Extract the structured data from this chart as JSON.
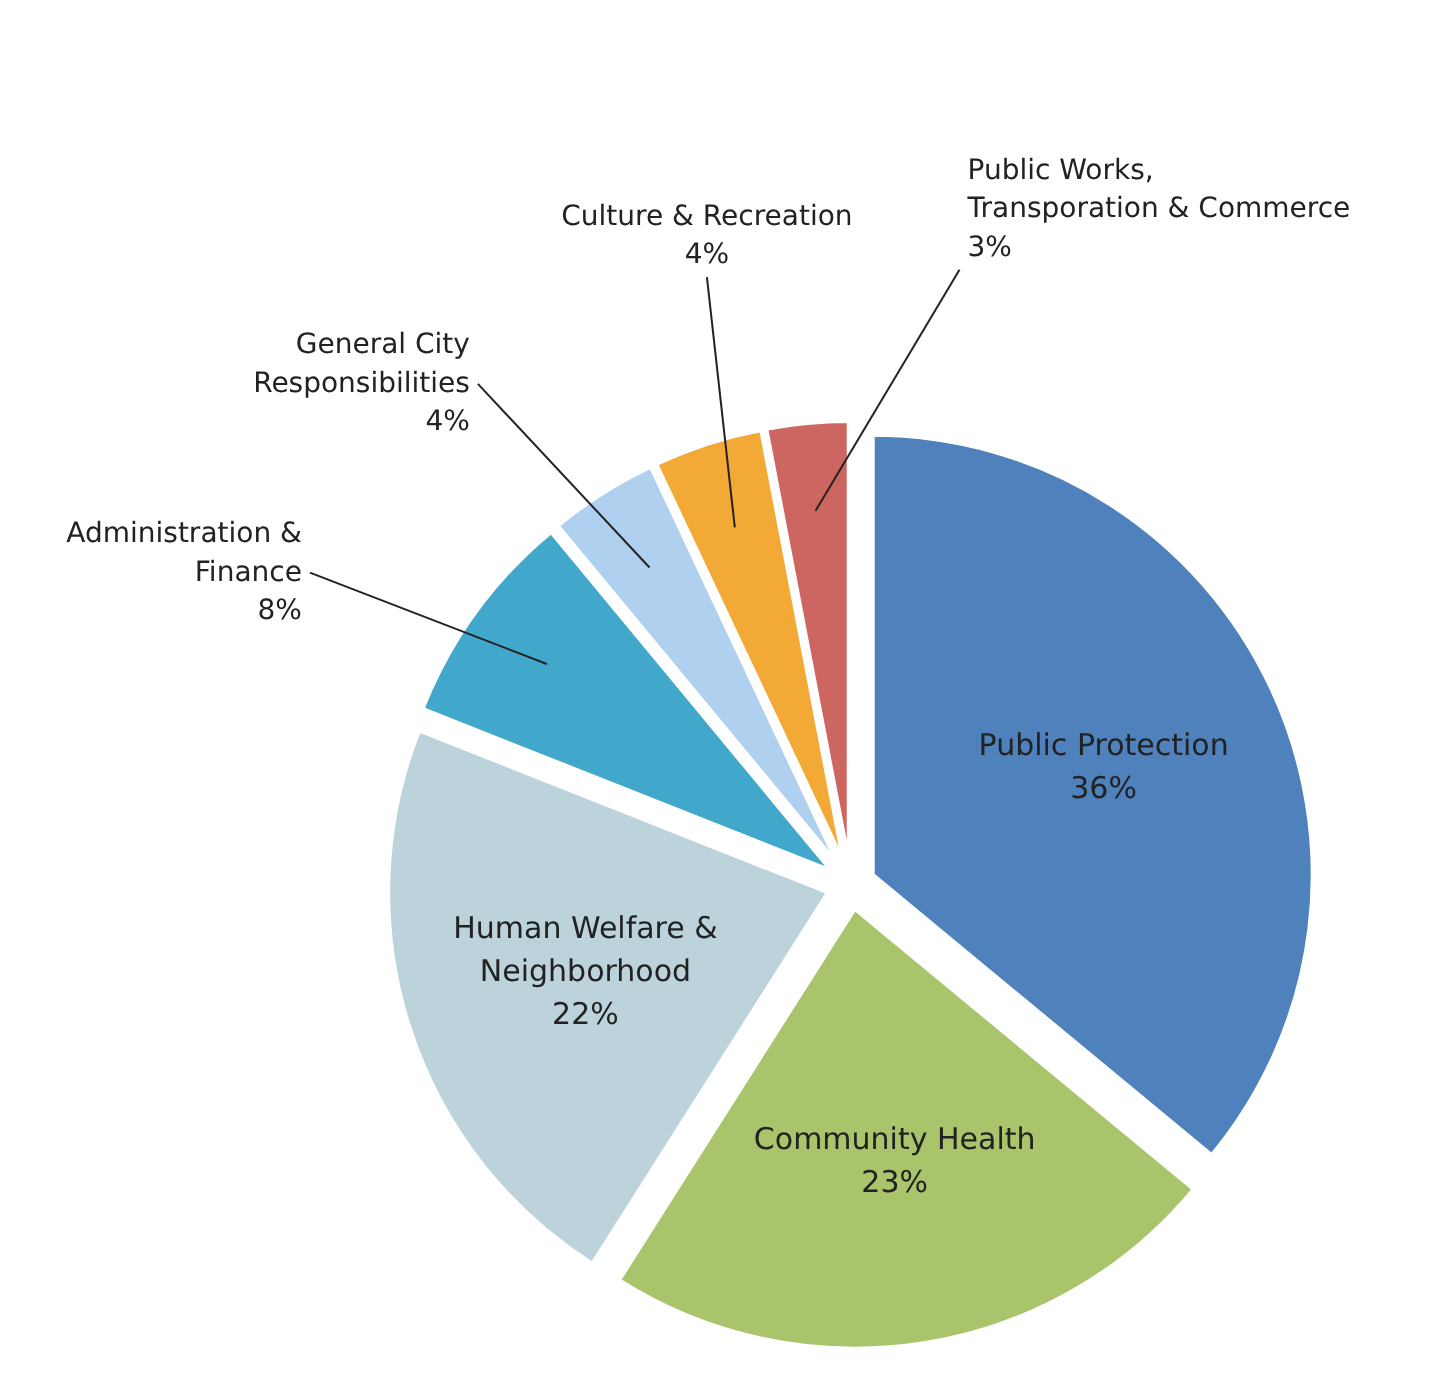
{
  "chart_data": {
    "type": "pie",
    "categories": [
      "Public Protection",
      "Community Health",
      "Human Welfare &\nNeighborhood",
      "Administration &\nFinance",
      "General City\nResponsibilities",
      "Culture & Recreation",
      "Public Works,\nTransporation & Commerce"
    ],
    "values": [
      36,
      23,
      22,
      8,
      4,
      4,
      3
    ],
    "value_labels": [
      "36%",
      "23%",
      "22%",
      "8%",
      "4%",
      "4%",
      "3%"
    ],
    "colors": [
      "#4f81bd",
      "#a9c46a",
      "#bdd3dc",
      "#41a8cc",
      "#afd0ee",
      "#f3a935",
      "#cd6660"
    ]
  }
}
